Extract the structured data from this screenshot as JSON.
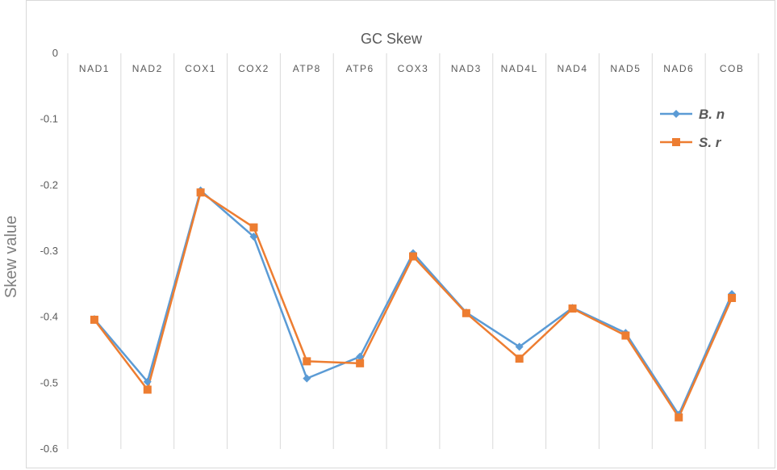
{
  "chart_data": {
    "type": "line",
    "title": "GC Skew",
    "ylabel": "Skew  value",
    "xlabel": "",
    "categories": [
      "NAD1",
      "NAD2",
      "COX1",
      "COX2",
      "ATP8",
      "ATP6",
      "COX3",
      "NAD3",
      "NAD4L",
      "NAD4",
      "NAD5",
      "NAD6",
      "COB"
    ],
    "ylim": [
      -0.6,
      0
    ],
    "yticks": [
      0,
      -0.1,
      -0.2,
      -0.3,
      -0.4,
      -0.5,
      -0.6
    ],
    "ytick_labels": [
      "0",
      "-0.1",
      "-0.2",
      "-0.3",
      "-0.4",
      "-0.5",
      "-0.6"
    ],
    "grid": "vertical",
    "legend_position": "right",
    "series": [
      {
        "name": "B. n",
        "color": "#5b9bd5",
        "marker": "diamond",
        "values": [
          -0.403,
          -0.498,
          -0.208,
          -0.278,
          -0.493,
          -0.46,
          -0.303,
          -0.393,
          -0.445,
          -0.386,
          -0.424,
          -0.548,
          -0.365
        ]
      },
      {
        "name": "S. r",
        "color": "#ed7d31",
        "marker": "square",
        "values": [
          -0.404,
          -0.51,
          -0.211,
          -0.264,
          -0.467,
          -0.47,
          -0.308,
          -0.394,
          -0.463,
          -0.387,
          -0.428,
          -0.552,
          -0.371
        ]
      }
    ]
  }
}
